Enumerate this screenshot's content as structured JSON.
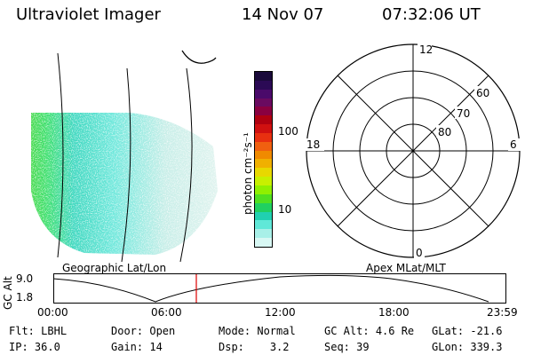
{
  "header": {
    "instrument": "Ultraviolet Imager",
    "date": "14 Nov 07",
    "time": "07:32:06 UT"
  },
  "colorbar": {
    "unit_label": "photon cm⁻²s⁻¹",
    "ticks": [
      "100",
      "10"
    ],
    "colors": [
      "#1a0a3a",
      "#2b0a55",
      "#4a0a6a",
      "#6a0a60",
      "#8a0040",
      "#b00010",
      "#d01010",
      "#e83010",
      "#f06010",
      "#f08a00",
      "#f0b000",
      "#e8d800",
      "#c8f000",
      "#90f000",
      "#50e020",
      "#20d060",
      "#20d0b0",
      "#60e8d8",
      "#a8f0e8",
      "#d8f8f4"
    ]
  },
  "polar_plot": {
    "mlt_labels": [
      "12",
      "18",
      "6",
      "0"
    ],
    "lat_labels": [
      "60",
      "70",
      "80"
    ]
  },
  "timeline": {
    "left_label": "Geographic Lat/Lon",
    "right_label": "Apex MLat/MLT",
    "axis_title": "GC Alt",
    "y_ticks": [
      "9.0",
      "1.8"
    ],
    "x_ticks": [
      "00:00",
      "06:00",
      "12:00",
      "18:00",
      "23:59"
    ],
    "current_marker_color": "#dd0000"
  },
  "status": {
    "row1": [
      {
        "label": "Flt:",
        "value": "LBHL"
      },
      {
        "label": "Door:",
        "value": "Open"
      },
      {
        "label": "Mode:",
        "value": "Normal"
      },
      {
        "label": "GC Alt:",
        "value": "4.6 Re"
      },
      {
        "label": "GLat:",
        "value": "-21.6"
      }
    ],
    "row2": [
      {
        "label": "IP:",
        "value": "36.0"
      },
      {
        "label": "Gain:",
        "value": "14"
      },
      {
        "label": "Dsp:",
        "value": "3.2"
      },
      {
        "label": "Seq:",
        "value": "39"
      },
      {
        "label": "GLon:",
        "value": "339.3"
      }
    ]
  }
}
